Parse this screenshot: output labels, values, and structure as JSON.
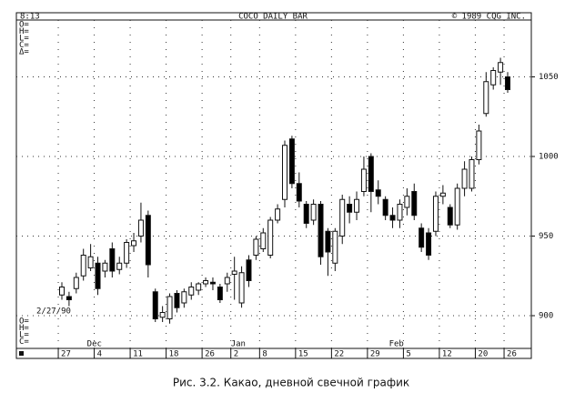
{
  "chart_data": {
    "type": "candlestick",
    "title": "COCO DAILY BAR",
    "header_left": "8:13",
    "header_right": "© 1989 CQG INC.",
    "info_top": [
      "O=",
      "H=",
      "L=",
      "C=",
      "Δ="
    ],
    "info_bottom": [
      "O=",
      "H=",
      "L=",
      "C="
    ],
    "annotation": "2/27/90",
    "caption": "Рис. 3.2. Какао, дневной свечной график",
    "categories": [
      "27",
      null,
      null,
      null,
      null,
      "4",
      null,
      null,
      null,
      null,
      "11",
      null,
      null,
      null,
      null,
      "18",
      null,
      null,
      null,
      null,
      "26",
      null,
      null,
      null,
      "2",
      null,
      null,
      null,
      "8",
      null,
      null,
      null,
      null,
      "15",
      null,
      null,
      null,
      null,
      "22",
      null,
      null,
      null,
      null,
      "29",
      null,
      null,
      null,
      null,
      "5",
      null,
      null,
      null,
      null,
      "12",
      null,
      null,
      null,
      null,
      "20",
      null,
      null,
      null,
      "26"
    ],
    "category_months": [
      null,
      null,
      null,
      null,
      "Dec",
      null,
      null,
      null,
      null,
      null,
      null,
      null,
      null,
      null,
      null,
      null,
      null,
      null,
      null,
      null,
      null,
      null,
      null,
      null,
      "Jan",
      null,
      null,
      null,
      null,
      null,
      null,
      null,
      null,
      null,
      null,
      null,
      null,
      null,
      null,
      null,
      null,
      null,
      null,
      null,
      null,
      null,
      "Feb",
      null,
      null,
      null,
      null,
      null,
      null,
      null,
      null,
      null,
      null,
      null,
      null,
      null,
      null,
      null,
      null
    ],
    "open": [
      913,
      912,
      917,
      925,
      930,
      933,
      928,
      942,
      929,
      933,
      944,
      950,
      963,
      915,
      899,
      898,
      914,
      908,
      913,
      916,
      920,
      921,
      918,
      920,
      926,
      908,
      935,
      938,
      942,
      938,
      960,
      973,
      1011,
      983,
      970,
      960,
      970,
      953,
      933,
      950,
      970,
      965,
      978,
      1000,
      979,
      973,
      963,
      960,
      968,
      978,
      955,
      952,
      953,
      975,
      968,
      957,
      980,
      980,
      998,
      1027,
      1045,
      1053,
      1050
    ],
    "high": [
      921,
      915,
      927,
      942,
      945,
      937,
      935,
      946,
      937,
      948,
      952,
      971,
      966,
      917,
      906,
      914,
      916,
      917,
      921,
      921,
      924,
      924,
      920,
      927,
      937,
      931,
      938,
      950,
      955,
      962,
      970,
      1010,
      1013,
      990,
      972,
      973,
      972,
      955,
      955,
      976,
      975,
      978,
      1000,
      1002,
      985,
      975,
      968,
      973,
      980,
      983,
      958,
      955,
      978,
      982,
      970,
      983,
      997,
      1000,
      1020,
      1053,
      1056,
      1062,
      1053
    ],
    "low": [
      910,
      906,
      914,
      922,
      928,
      913,
      924,
      924,
      926,
      930,
      940,
      946,
      924,
      896,
      896,
      895,
      902,
      905,
      910,
      913,
      918,
      916,
      908,
      915,
      910,
      905,
      918,
      935,
      940,
      936,
      958,
      968,
      980,
      968,
      955,
      957,
      932,
      925,
      928,
      945,
      958,
      960,
      975,
      965,
      970,
      960,
      955,
      955,
      963,
      960,
      940,
      935,
      950,
      970,
      955,
      954,
      975,
      978,
      995,
      1025,
      1042,
      1045,
      1040
    ],
    "close": [
      918,
      910,
      924,
      938,
      937,
      917,
      933,
      928,
      933,
      946,
      947,
      960,
      932,
      898,
      902,
      912,
      905,
      915,
      918,
      920,
      922,
      920,
      910,
      924,
      928,
      927,
      922,
      948,
      952,
      960,
      967,
      1007,
      983,
      972,
      958,
      970,
      937,
      940,
      953,
      973,
      965,
      973,
      992,
      978,
      975,
      963,
      960,
      970,
      975,
      963,
      943,
      938,
      975,
      977,
      957,
      980,
      992,
      998,
      1016,
      1047,
      1054,
      1059,
      1042
    ],
    "up_color": "#ffffff",
    "down_color": "#000000",
    "ylim": [
      880,
      1086
    ],
    "yticks": [
      900,
      950,
      1000,
      1050
    ],
    "grid": true
  }
}
